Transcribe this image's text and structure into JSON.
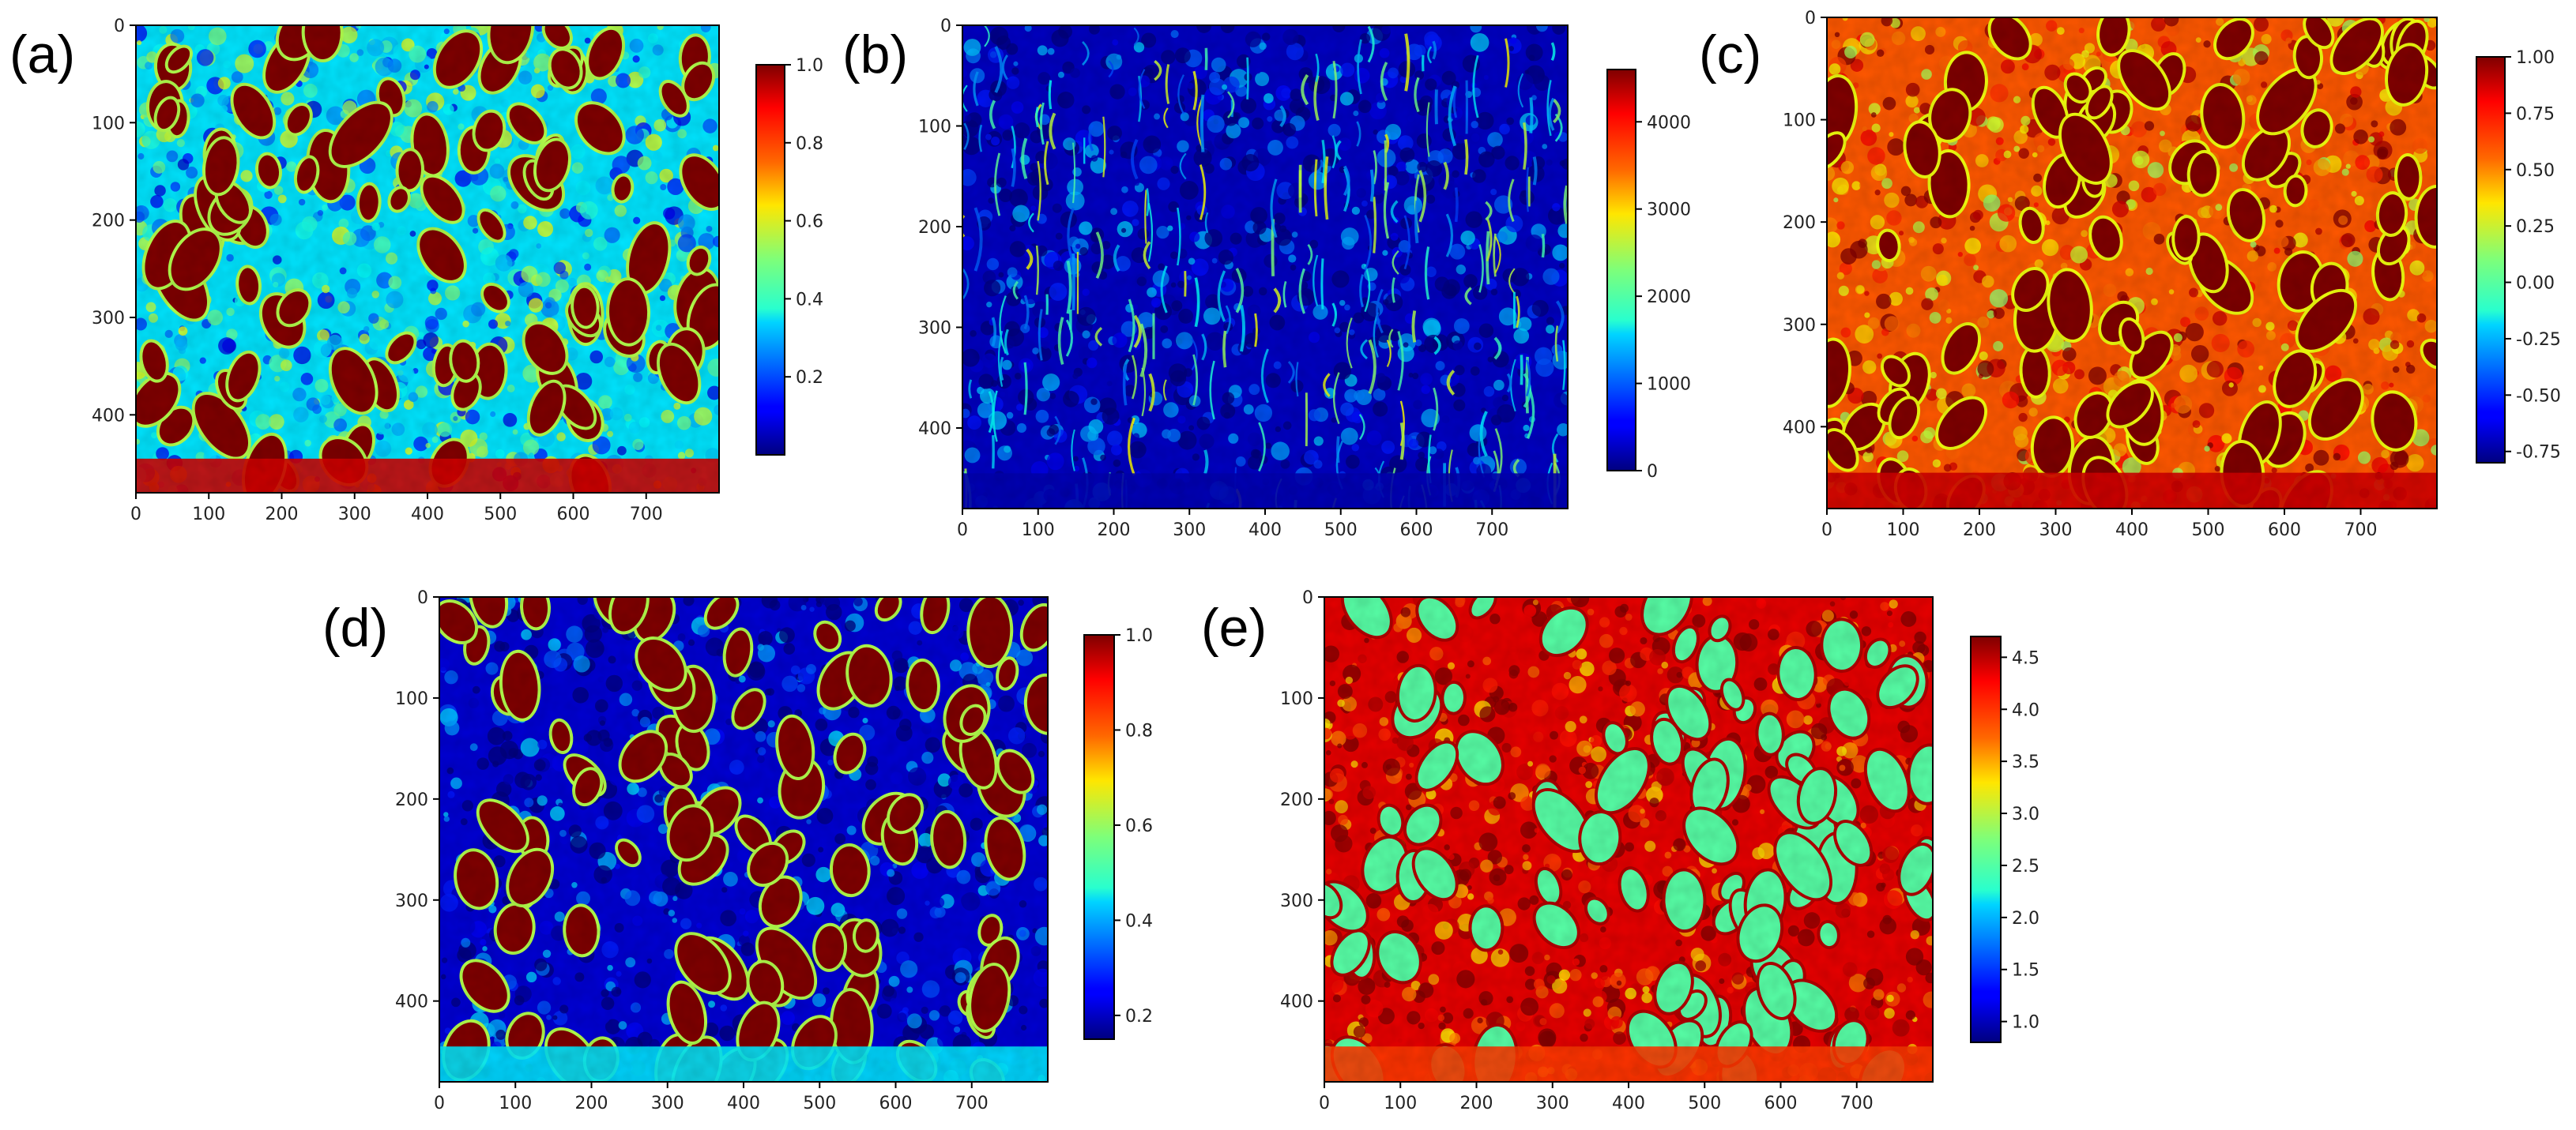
{
  "figure": {
    "description_free": true,
    "panels_count": 5
  },
  "chart_data": [
    {
      "type": "heatmap",
      "label": "(a)",
      "x_ticks": [
        "0",
        "100",
        "200",
        "300",
        "400",
        "500",
        "600",
        "700"
      ],
      "y_ticks": [
        "0",
        "100",
        "200",
        "300",
        "400"
      ],
      "xlim": [
        0,
        800
      ],
      "ylim": [
        0,
        480
      ],
      "colormap": "jet",
      "colorbar": {
        "min": 0,
        "max": 1.0,
        "ticks": [
          "0.2",
          "0.4",
          "0.6",
          "0.8",
          "1.0"
        ],
        "tick_values": [
          0.2,
          0.4,
          0.6,
          0.8,
          1.0
        ]
      },
      "dominant_level": 0.35,
      "blob_level": 1.0
    },
    {
      "type": "heatmap",
      "label": "(b)",
      "x_ticks": [
        "0",
        "100",
        "200",
        "300",
        "400",
        "500",
        "600",
        "700"
      ],
      "y_ticks": [
        "0",
        "100",
        "200",
        "300",
        "400"
      ],
      "xlim": [
        0,
        800
      ],
      "ylim": [
        0,
        480
      ],
      "colormap": "jet",
      "colorbar": {
        "min": 0,
        "max": 4600,
        "ticks": [
          "0",
          "1000",
          "2000",
          "3000",
          "4000"
        ],
        "tick_values": [
          0,
          1000,
          2000,
          3000,
          4000
        ]
      },
      "dominant_level": 300,
      "blob_level": 1800
    },
    {
      "type": "heatmap",
      "label": "(c)",
      "x_ticks": [
        "0",
        "100",
        "200",
        "300",
        "400",
        "500",
        "600",
        "700"
      ],
      "y_ticks": [
        "0",
        "100",
        "200",
        "300",
        "400"
      ],
      "xlim": [
        0,
        800
      ],
      "ylim": [
        0,
        480
      ],
      "colormap": "jet",
      "colorbar": {
        "min": -0.8,
        "max": 1.0,
        "ticks": [
          "-0.75",
          "-0.50",
          "-0.25",
          "0.00",
          "0.25",
          "0.50",
          "0.75",
          "1.00"
        ],
        "tick_values": [
          -0.75,
          -0.5,
          -0.25,
          0,
          0.25,
          0.5,
          0.75,
          1.0
        ]
      },
      "dominant_level": 0.62,
      "blob_level": 1.0
    },
    {
      "type": "heatmap",
      "label": "(d)",
      "x_ticks": [
        "0",
        "100",
        "200",
        "300",
        "400",
        "500",
        "600",
        "700"
      ],
      "y_ticks": [
        "0",
        "100",
        "200",
        "300",
        "400"
      ],
      "xlim": [
        0,
        800
      ],
      "ylim": [
        0,
        480
      ],
      "colormap": "jet",
      "colorbar": {
        "min": 0.15,
        "max": 1.0,
        "ticks": [
          "0.2",
          "0.4",
          "0.6",
          "0.8",
          "1.0"
        ],
        "tick_values": [
          0.2,
          0.4,
          0.6,
          0.8,
          1.0
        ]
      },
      "dominant_level": 0.22,
      "blob_level": 1.0
    },
    {
      "type": "heatmap",
      "label": "(e)",
      "x_ticks": [
        "0",
        "100",
        "200",
        "300",
        "400",
        "500",
        "600",
        "700"
      ],
      "y_ticks": [
        "0",
        "100",
        "200",
        "300",
        "400"
      ],
      "xlim": [
        0,
        800
      ],
      "ylim": [
        0,
        480
      ],
      "colormap": "jet",
      "colorbar": {
        "min": 0.8,
        "max": 4.7,
        "ticks": [
          "1.0",
          "1.5",
          "2.0",
          "2.5",
          "3.0",
          "3.5",
          "4.0",
          "4.5"
        ],
        "tick_values": [
          1.0,
          1.5,
          2.0,
          2.5,
          3.0,
          3.5,
          4.0,
          4.5
        ]
      },
      "dominant_level": 4.3,
      "blob_level": 2.6
    }
  ]
}
